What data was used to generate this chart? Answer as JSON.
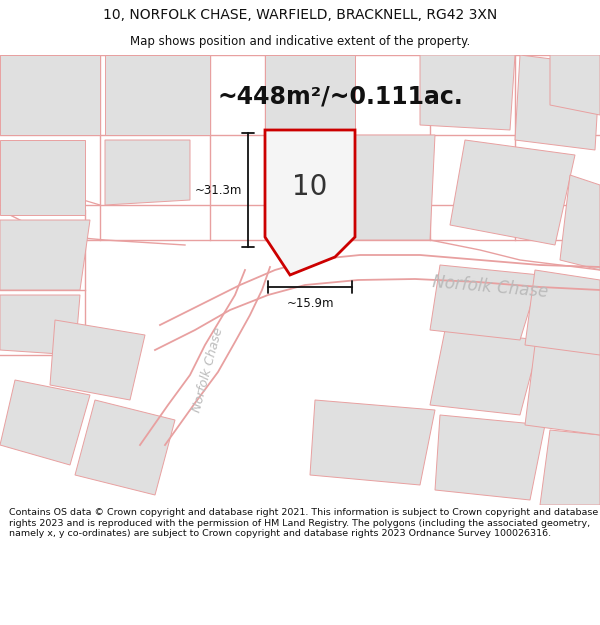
{
  "title_line1": "10, NORFOLK CHASE, WARFIELD, BRACKNELL, RG42 3XN",
  "title_line2": "Map shows position and indicative extent of the property.",
  "area_text": "~448m²/~0.111ac.",
  "label_number": "10",
  "dim_height": "~31.3m",
  "dim_width": "~15.9m",
  "street_label_chase": "Norfolk Chase",
  "street_label_norfolk": "Norfolk Chase",
  "footer_text": "Contains OS data © Crown copyright and database right 2021. This information is subject to Crown copyright and database rights 2023 and is reproduced with the permission of HM Land Registry. The polygons (including the associated geometry, namely x, y co-ordinates) are subject to Crown copyright and database rights 2023 Ordnance Survey 100026316.",
  "bg_color": "#ffffff",
  "map_bg_color": "#f7f7f7",
  "plot_fill_color": "#f0f0f0",
  "plot_line_color": "#cc0000",
  "other_plot_fill": "#e0e0e0",
  "other_plot_edge": "#e8a0a0",
  "road_color": "#e8a0a0",
  "title_color": "#111111",
  "footer_color": "#111111",
  "area_text_color": "#111111",
  "dim_color": "#111111",
  "street_color": "#bbbbbb"
}
